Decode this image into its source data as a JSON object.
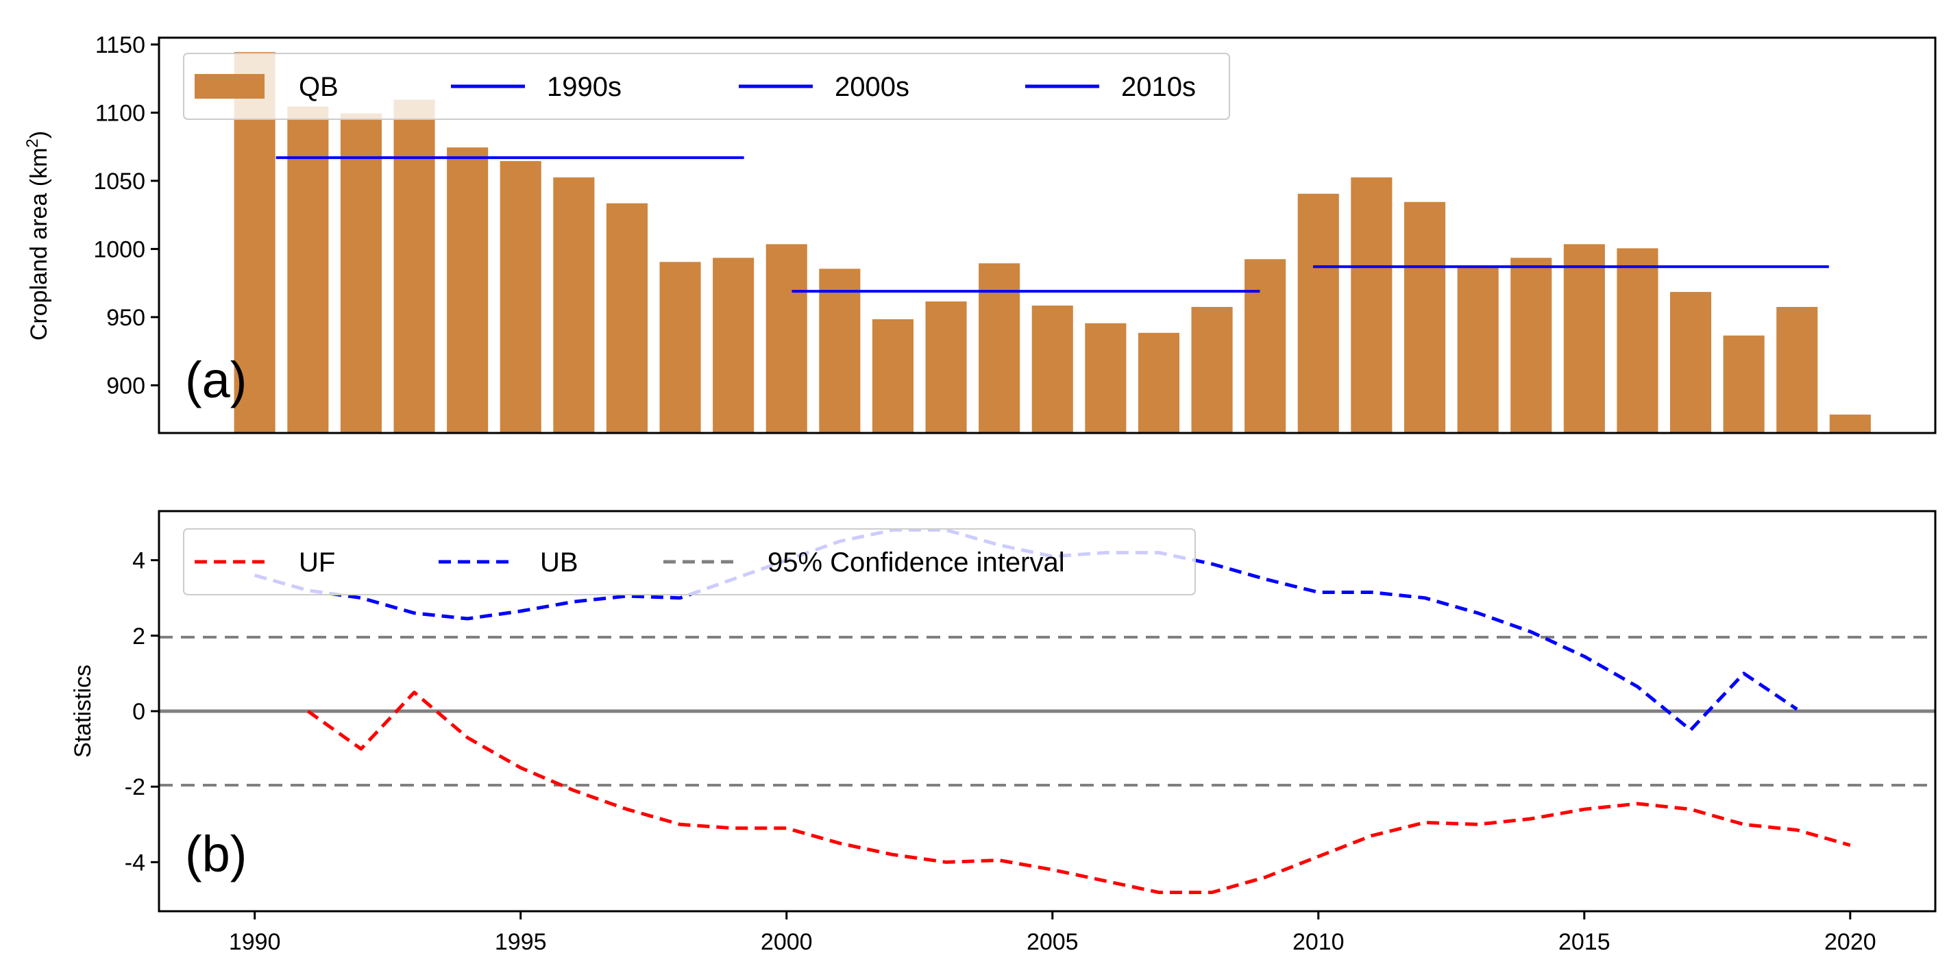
{
  "chart_data": [
    {
      "panel": "a",
      "type": "bar",
      "panel_label": "(a)",
      "ylabel_main": "Cropland area (km",
      "ylabel_sup": "2",
      "ylabel_close": ")",
      "ylim": [
        865,
        1155
      ],
      "yticks": [
        900,
        950,
        1000,
        1050,
        1100,
        1150
      ],
      "xlim": [
        1988.2,
        2021.6
      ],
      "bar_color": "#CD853F",
      "series": [
        {
          "name": "QB",
          "x": [
            1990,
            1991,
            1992,
            1993,
            1994,
            1995,
            1996,
            1997,
            1998,
            1999,
            2000,
            2001,
            2002,
            2003,
            2004,
            2005,
            2006,
            2007,
            2008,
            2009,
            2010,
            2011,
            2012,
            2013,
            2014,
            2015,
            2016,
            2017,
            2018,
            2019,
            2020
          ],
          "values": [
            1145,
            1105,
            1100,
            1110,
            1075,
            1065,
            1053,
            1034,
            991,
            994,
            1004,
            986,
            949,
            962,
            990,
            959,
            946,
            939,
            958,
            993,
            1041,
            1053,
            1035,
            988,
            994,
            1004,
            1001,
            969,
            937,
            958,
            879
          ]
        }
      ],
      "decade_means": [
        {
          "name": "1990s",
          "value": 1067,
          "x0": 1990.4,
          "x1": 1999.2,
          "color": "#0000FF"
        },
        {
          "name": "2000s",
          "value": 969,
          "x0": 2000.1,
          "x1": 2008.9,
          "color": "#0000FF"
        },
        {
          "name": "2010s",
          "value": 987,
          "x0": 2009.9,
          "x1": 2019.6,
          "color": "#0000FF"
        }
      ],
      "legend": [
        "QB",
        "1990s",
        "2000s",
        "2010s"
      ],
      "legend_position": "upper-left"
    },
    {
      "panel": "b",
      "type": "line",
      "panel_label": "(b)",
      "ylabel": "Statistics",
      "xlabel": "",
      "ylim": [
        -5.3,
        5.3
      ],
      "yticks": [
        -4,
        -2,
        0,
        2,
        4
      ],
      "xlim": [
        1988.2,
        2021.6
      ],
      "xticks": [
        1990,
        1995,
        2000,
        2005,
        2010,
        2015,
        2020
      ],
      "series": [
        {
          "name": "UF",
          "color": "#FF0000",
          "style": "dashed",
          "x": [
            1991,
            1992,
            1993,
            1994,
            1995,
            1996,
            1997,
            1998,
            1999,
            2000,
            2001,
            2002,
            2003,
            2004,
            2005,
            2006,
            2007,
            2008,
            2009,
            2010,
            2011,
            2012,
            2013,
            2014,
            2015,
            2016,
            2017,
            2018,
            2019,
            2020
          ],
          "values": [
            0,
            -1.0,
            0.5,
            -0.7,
            -1.5,
            -2.1,
            -2.6,
            -3.0,
            -3.1,
            -3.1,
            -3.5,
            -3.8,
            -4.0,
            -3.95,
            -4.2,
            -4.5,
            -4.8,
            -4.8,
            -4.4,
            -3.85,
            -3.3,
            -2.95,
            -3.0,
            -2.85,
            -2.6,
            -2.45,
            -2.6,
            -3.0,
            -3.15,
            -3.55
          ]
        },
        {
          "name": "UB",
          "color": "#0000FF",
          "style": "dashed",
          "x": [
            1990,
            1991,
            1992,
            1993,
            1994,
            1995,
            1996,
            1997,
            1998,
            1999,
            2000,
            2001,
            2002,
            2003,
            2004,
            2005,
            2006,
            2007,
            2008,
            2009,
            2010,
            2011,
            2012,
            2013,
            2014,
            2015,
            2016,
            2017,
            2018,
            2019
          ],
          "values": [
            3.6,
            3.2,
            3.0,
            2.6,
            2.45,
            2.65,
            2.9,
            3.05,
            3.0,
            3.5,
            4.0,
            4.5,
            4.8,
            4.8,
            4.4,
            4.1,
            4.2,
            4.2,
            3.9,
            3.5,
            3.15,
            3.15,
            3.0,
            2.6,
            2.1,
            1.45,
            0.65,
            -0.5,
            1.0,
            0.05
          ]
        }
      ],
      "confidence_interval": {
        "name": "95% Confidence interval",
        "bounds": [
          1.96,
          -1.96
        ],
        "color": "#808080"
      },
      "zero_line": 0,
      "legend": [
        "UF",
        "UB",
        "95% Confidence interval"
      ],
      "legend_position": "upper-left"
    }
  ]
}
